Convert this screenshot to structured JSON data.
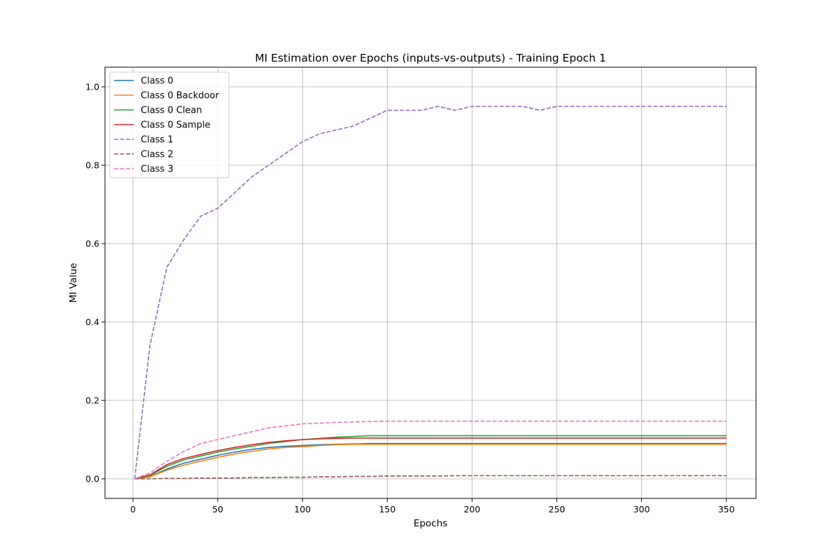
{
  "chart_data": {
    "type": "line",
    "title": "MI Estimation over Epochs (inputs-vs-outputs) - Training Epoch 1",
    "xlabel": "Epochs",
    "ylabel": "MI Value",
    "xlim": [
      -16.5,
      367.5
    ],
    "ylim": [
      -0.05,
      1.05
    ],
    "xticks": [
      0,
      50,
      100,
      150,
      200,
      250,
      300,
      350
    ],
    "yticks": [
      0.0,
      0.2,
      0.4,
      0.6,
      0.8,
      1.0
    ],
    "xtick_labels": [
      "0",
      "50",
      "100",
      "150",
      "200",
      "250",
      "300",
      "350"
    ],
    "ytick_labels": [
      "0.0",
      "0.2",
      "0.4",
      "0.6",
      "0.8",
      "1.0"
    ],
    "grid": true,
    "legend_position": "upper-left",
    "x": [
      1,
      10,
      20,
      30,
      40,
      50,
      60,
      70,
      80,
      90,
      100,
      110,
      120,
      130,
      140,
      150,
      160,
      170,
      180,
      190,
      200,
      210,
      220,
      230,
      240,
      250,
      260,
      270,
      280,
      290,
      300,
      310,
      320,
      330,
      340,
      350
    ],
    "series": [
      {
        "name": "Class 0",
        "color": "#1f77b4",
        "dash": "solid",
        "values": [
          0.0,
          0.005,
          0.025,
          0.04,
          0.05,
          0.06,
          0.068,
          0.075,
          0.08,
          0.083,
          0.085,
          0.087,
          0.088,
          0.089,
          0.09,
          0.09,
          0.09,
          0.09,
          0.09,
          0.09,
          0.09,
          0.09,
          0.09,
          0.09,
          0.09,
          0.09,
          0.09,
          0.09,
          0.09,
          0.09,
          0.09,
          0.09,
          0.09,
          0.09,
          0.09,
          0.09
        ]
      },
      {
        "name": "Class 0 Backdoor",
        "color": "#ff7f0e",
        "dash": "solid",
        "values": [
          0.0,
          0.005,
          0.022,
          0.035,
          0.045,
          0.055,
          0.063,
          0.07,
          0.076,
          0.08,
          0.082,
          0.085,
          0.087,
          0.088,
          0.088,
          0.088,
          0.088,
          0.088,
          0.088,
          0.088,
          0.088,
          0.088,
          0.088,
          0.088,
          0.088,
          0.088,
          0.088,
          0.088,
          0.088,
          0.088,
          0.088,
          0.088,
          0.088,
          0.088,
          0.088,
          0.088
        ]
      },
      {
        "name": "Class 0 Clean",
        "color": "#2ca02c",
        "dash": "solid",
        "values": [
          0.0,
          0.008,
          0.032,
          0.048,
          0.058,
          0.068,
          0.076,
          0.083,
          0.09,
          0.095,
          0.1,
          0.103,
          0.106,
          0.108,
          0.11,
          0.11,
          0.11,
          0.11,
          0.11,
          0.11,
          0.11,
          0.11,
          0.11,
          0.11,
          0.11,
          0.11,
          0.11,
          0.11,
          0.11,
          0.11,
          0.11,
          0.11,
          0.11,
          0.11,
          0.11,
          0.11
        ]
      },
      {
        "name": "Class 0 Sample",
        "color": "#d62728",
        "dash": "solid",
        "values": [
          0.0,
          0.01,
          0.036,
          0.052,
          0.062,
          0.072,
          0.08,
          0.087,
          0.093,
          0.097,
          0.1,
          0.102,
          0.103,
          0.104,
          0.104,
          0.104,
          0.104,
          0.104,
          0.104,
          0.104,
          0.104,
          0.104,
          0.104,
          0.104,
          0.104,
          0.104,
          0.104,
          0.104,
          0.104,
          0.104,
          0.104,
          0.104,
          0.104,
          0.104,
          0.104,
          0.104
        ]
      },
      {
        "name": "Class 1",
        "color": "#9467bd",
        "dash": "dashed",
        "values": [
          0.0,
          0.34,
          0.54,
          0.61,
          0.67,
          0.69,
          0.73,
          0.77,
          0.8,
          0.83,
          0.86,
          0.88,
          0.89,
          0.9,
          0.92,
          0.94,
          0.94,
          0.94,
          0.95,
          0.94,
          0.95,
          0.95,
          0.95,
          0.95,
          0.94,
          0.95,
          0.95,
          0.95,
          0.95,
          0.95,
          0.95,
          0.95,
          0.95,
          0.95,
          0.95,
          0.95
        ]
      },
      {
        "name": "Class 2",
        "color": "#8c564b",
        "dash": "dashed",
        "values": [
          0.0,
          0.0,
          0.001,
          0.001,
          0.002,
          0.002,
          0.002,
          0.003,
          0.003,
          0.004,
          0.004,
          0.005,
          0.005,
          0.006,
          0.006,
          0.007,
          0.007,
          0.007,
          0.007,
          0.008,
          0.008,
          0.008,
          0.008,
          0.008,
          0.008,
          0.008,
          0.008,
          0.008,
          0.008,
          0.008,
          0.008,
          0.008,
          0.008,
          0.008,
          0.008,
          0.008
        ]
      },
      {
        "name": "Class 3",
        "color": "#e377c2",
        "dash": "dashed",
        "values": [
          0.0,
          0.015,
          0.045,
          0.07,
          0.09,
          0.1,
          0.11,
          0.12,
          0.13,
          0.135,
          0.14,
          0.142,
          0.144,
          0.145,
          0.146,
          0.147,
          0.147,
          0.147,
          0.147,
          0.147,
          0.147,
          0.147,
          0.147,
          0.147,
          0.147,
          0.147,
          0.147,
          0.147,
          0.147,
          0.147,
          0.147,
          0.147,
          0.147,
          0.147,
          0.147,
          0.147
        ]
      }
    ]
  }
}
